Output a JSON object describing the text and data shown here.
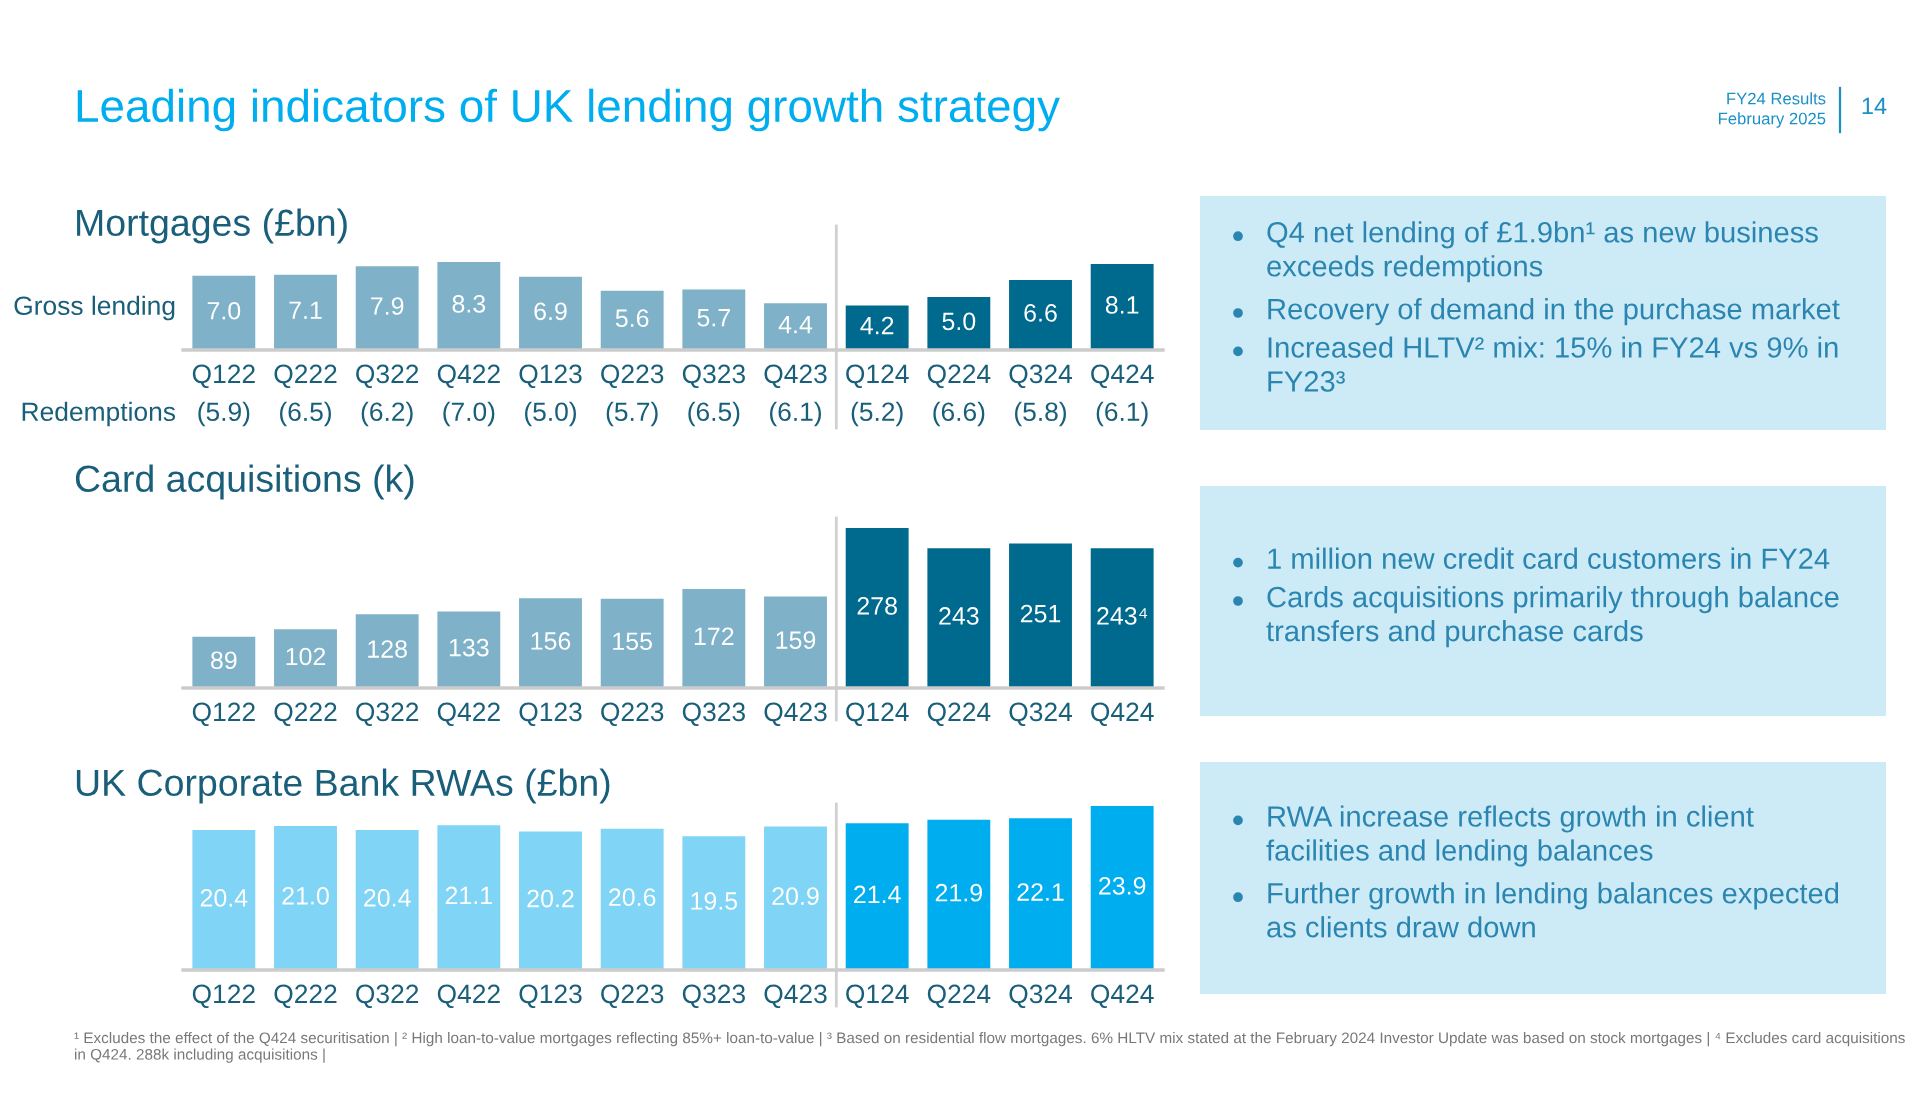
{
  "chart_data": [
    {
      "type": "bar",
      "title": "Mortgages (£bn)",
      "ylabel": "Gross lending",
      "categories": [
        "Q122",
        "Q222",
        "Q322",
        "Q422",
        "Q123",
        "Q223",
        "Q323",
        "Q423",
        "Q124",
        "Q224",
        "Q324",
        "Q424"
      ],
      "values": [
        7.0,
        7.1,
        7.9,
        8.3,
        6.9,
        5.6,
        5.7,
        4.4,
        4.2,
        5.0,
        6.6,
        8.1
      ],
      "colors": [
        "#7fb2c8",
        "#7fb2c8",
        "#7fb2c8",
        "#7fb2c8",
        "#7fb2c8",
        "#7fb2c8",
        "#7fb2c8",
        "#7fb2c8",
        "#006a8e",
        "#006a8e",
        "#006a8e",
        "#006a8e"
      ],
      "value_labels": [
        "7.0",
        "7.1",
        "7.9",
        "8.3",
        "6.9",
        "5.6",
        "5.7",
        "4.4",
        "4.2",
        "5.0",
        "6.6",
        "8.1"
      ],
      "annotations": [
        "Leading indicators of UK lending growth strategy",
        "FY24 Results",
        "February 2025",
        "14",
        "Redemptions",
        "(5.9)",
        "(6.5)",
        "(6.2)",
        "(7.0)",
        "(5.0)",
        "(5.7)",
        "(6.5)",
        "(6.1)",
        "(5.2)",
        "(6.6)",
        "(5.8)",
        "(6.1)"
      ]
    },
    {
      "type": "other",
      "annotations": [
        "Q4 net lending of £1.9bn¹ as new business\nexceeds redemptions",
        "Recovery of demand in the purchase market",
        "Increased HLTV² mix: 15% in FY24 vs 9% in\nFY23³"
      ]
    },
    {
      "type": "bar",
      "title": "Card acquisitions (k)",
      "categories": [
        "Q122",
        "Q222",
        "Q322",
        "Q422",
        "Q123",
        "Q223",
        "Q323",
        "Q423",
        "Q124",
        "Q224",
        "Q324",
        "Q424"
      ],
      "values": [
        89,
        102,
        128,
        133,
        156,
        155,
        172,
        159,
        278,
        243,
        251,
        243
      ],
      "colors": [
        "#7fb2c8",
        "#7fb2c8",
        "#7fb2c8",
        "#7fb2c8",
        "#7fb2c8",
        "#7fb2c8",
        "#7fb2c8",
        "#7fb2c8",
        "#006a8e",
        "#006a8e",
        "#006a8e",
        "#006a8e"
      ],
      "value_labels": [
        "89",
        "102",
        "128",
        "133",
        "156",
        "155",
        "172",
        "159",
        "278",
        "243",
        "251",
        "243⁴"
      ]
    },
    {
      "type": "other",
      "annotations": [
        "1 million new credit card customers in FY24",
        "Cards acquisitions primarily through balance\ntransfers and purchase cards"
      ]
    },
    {
      "type": "bar",
      "title": "UK Corporate Bank RWAs (£bn)",
      "categories": [
        "Q122",
        "Q222",
        "Q322",
        "Q422",
        "Q123",
        "Q223",
        "Q323",
        "Q423",
        "Q124",
        "Q224",
        "Q324",
        "Q424"
      ],
      "values": [
        20.4,
        21.0,
        20.4,
        21.1,
        20.2,
        20.6,
        19.5,
        20.9,
        21.4,
        21.9,
        22.1,
        23.9
      ],
      "colors": [
        "#80d4f5",
        "#80d4f5",
        "#80d4f5",
        "#80d4f5",
        "#80d4f5",
        "#80d4f5",
        "#80d4f5",
        "#80d4f5",
        "#00aeef",
        "#00aeef",
        "#00aeef",
        "#00aeef"
      ],
      "value_labels": [
        "20.4",
        "21.0",
        "20.4",
        "21.1",
        "20.2",
        "20.6",
        "19.5",
        "20.9",
        "21.4",
        "21.9",
        "22.1",
        "23.9"
      ]
    },
    {
      "type": "other",
      "annotations": [
        "RWA increase reflects growth in client\nfacilities and lending balances",
        "Further growth in lending balances expected\nas clients draw down",
        "¹ Excludes the effect of the Q424 securitisation | ² High loan-to-value mortgages reflecting 85%+ loan-to-value | ³ Based on residential flow mortgages. 6% HLTV mix stated at the February 2024 Investor Update was based on stock mortgages | ⁴ Excludes card acquisitions in Q424. 288k including acquisitions |"
      ]
    }
  ]
}
